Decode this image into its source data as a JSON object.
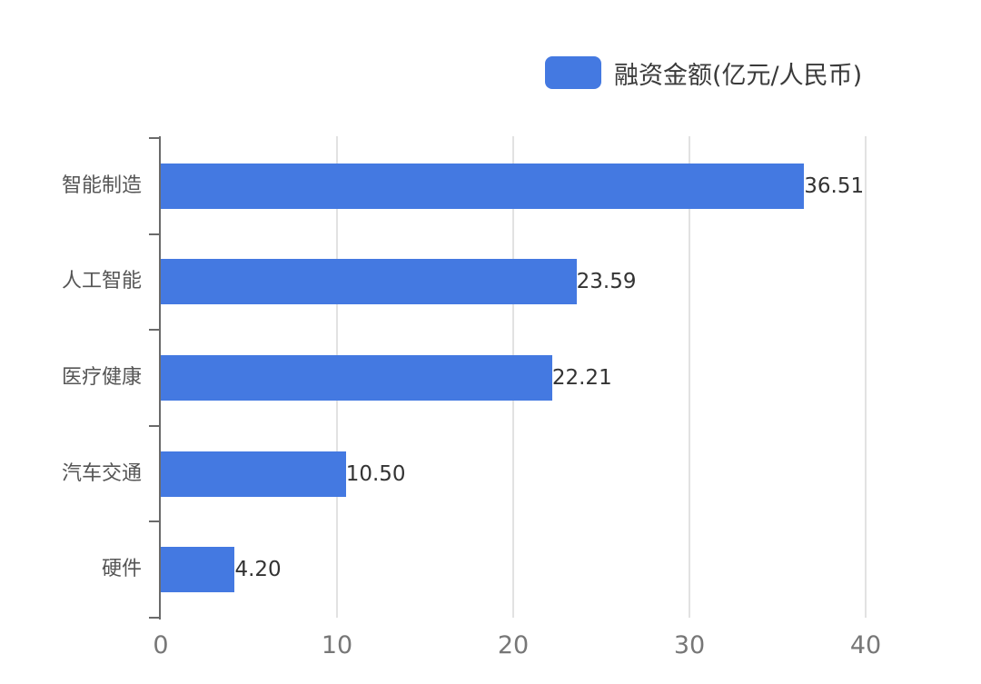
{
  "chart_data": {
    "type": "bar",
    "orientation": "horizontal",
    "title": "",
    "xlabel": "",
    "ylabel": "",
    "categories": [
      "智能制造",
      "人工智能",
      "医疗健康",
      "汽车交通",
      "硬件"
    ],
    "series": [
      {
        "name": "融资金额(亿元/人民币)",
        "values": [
          36.51,
          23.59,
          22.21,
          10.5,
          4.2
        ],
        "color": "#4479e1"
      }
    ],
    "value_labels": [
      "36.51",
      "23.59",
      "22.21",
      "10.50",
      "4.20"
    ],
    "xlim": [
      0,
      40
    ],
    "xticks": [
      "0",
      "10",
      "20",
      "30",
      "40"
    ],
    "grid": "vertical",
    "legend_position": "top-right"
  },
  "legend": {
    "label": "融资金额(亿元/人民币)"
  }
}
